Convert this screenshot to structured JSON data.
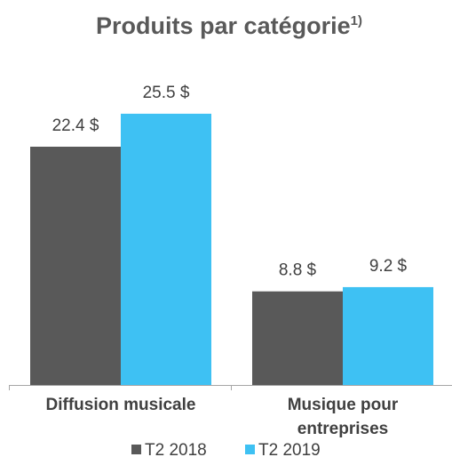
{
  "chart_data": {
    "type": "bar",
    "title": "Produits par catégorie",
    "title_superscript": "1)",
    "categories": [
      [
        "Diffusion musicale"
      ],
      [
        "Musique pour",
        "entreprises"
      ]
    ],
    "series": [
      {
        "name": "T2 2018",
        "color": "#595959",
        "values": [
          22.4,
          8.8
        ],
        "labels": [
          "22.4 $",
          "8.8 $"
        ]
      },
      {
        "name": "T2 2019",
        "color": "#3EC1F3",
        "values": [
          25.5,
          9.2
        ],
        "labels": [
          "25.5 $",
          "9.2 $"
        ]
      }
    ],
    "ylim": [
      0,
      30
    ],
    "grid": false,
    "legend_position": "bottom"
  }
}
